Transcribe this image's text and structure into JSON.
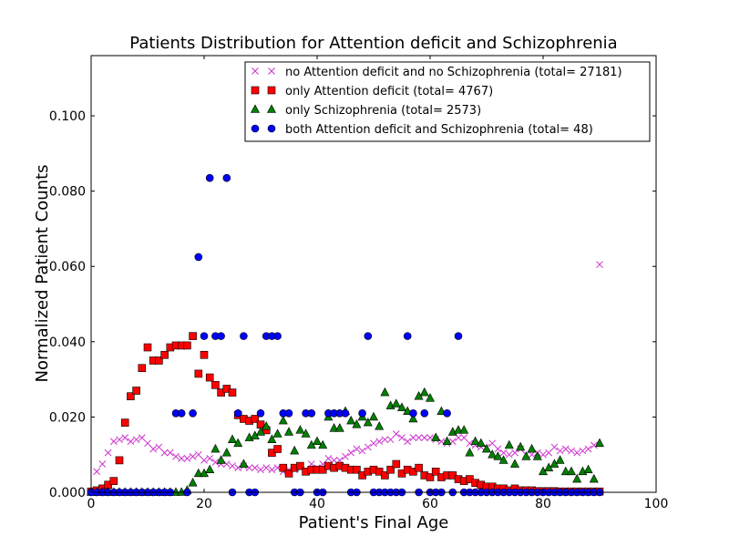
{
  "chart_data": {
    "type": "scatter",
    "title": "Patients Distribution for Attention deficit and Schizophrenia",
    "xlabel": "Patient's Final Age",
    "ylabel": "Normalized Patient Counts",
    "xlim": [
      0,
      100
    ],
    "ylim": [
      0,
      0.116
    ],
    "xticks": [
      "0",
      "20",
      "40",
      "60",
      "80",
      "100"
    ],
    "yticks": [
      "0.000",
      "0.020",
      "0.040",
      "0.060",
      "0.080",
      "0.100"
    ],
    "legend_position": "top-right",
    "grid": false,
    "series": [
      {
        "name": "no Attention deficit and no Schizophrenia (total= 27181)",
        "marker": "x",
        "color": "#cc33cc",
        "x": [
          1,
          2,
          3,
          4,
          5,
          6,
          7,
          8,
          9,
          10,
          11,
          12,
          13,
          14,
          15,
          16,
          17,
          18,
          19,
          20,
          21,
          22,
          23,
          24,
          25,
          26,
          27,
          28,
          29,
          30,
          31,
          32,
          33,
          34,
          35,
          36,
          37,
          38,
          39,
          40,
          41,
          42,
          43,
          44,
          45,
          46,
          47,
          48,
          49,
          50,
          51,
          52,
          53,
          54,
          55,
          56,
          57,
          58,
          59,
          60,
          61,
          62,
          63,
          64,
          65,
          66,
          67,
          68,
          69,
          70,
          71,
          72,
          73,
          74,
          75,
          76,
          77,
          78,
          79,
          80,
          81,
          82,
          83,
          84,
          85,
          86,
          87,
          88,
          89,
          90
        ],
        "y": [
          0.0055,
          0.0075,
          0.0105,
          0.0135,
          0.014,
          0.0145,
          0.0135,
          0.014,
          0.0145,
          0.013,
          0.0115,
          0.012,
          0.0105,
          0.0105,
          0.0095,
          0.009,
          0.009,
          0.0095,
          0.01,
          0.0085,
          0.009,
          0.008,
          0.0075,
          0.0075,
          0.007,
          0.0065,
          0.007,
          0.0065,
          0.0065,
          0.006,
          0.0065,
          0.006,
          0.0065,
          0.0055,
          0.006,
          0.006,
          0.007,
          0.006,
          0.0075,
          0.0065,
          0.0075,
          0.009,
          0.0085,
          0.0085,
          0.0095,
          0.0105,
          0.0115,
          0.011,
          0.012,
          0.013,
          0.0135,
          0.014,
          0.014,
          0.0155,
          0.0145,
          0.0135,
          0.0145,
          0.0145,
          0.0145,
          0.0145,
          0.014,
          0.0135,
          0.013,
          0.0135,
          0.0145,
          0.0145,
          0.013,
          0.0125,
          0.012,
          0.012,
          0.013,
          0.0115,
          0.0105,
          0.01,
          0.0105,
          0.0115,
          0.01,
          0.01,
          0.0105,
          0.01,
          0.0105,
          0.012,
          0.011,
          0.0115,
          0.011,
          0.0105,
          0.011,
          0.0115,
          0.0125,
          0.0605
        ]
      },
      {
        "name": "only Attention deficit (total= 4767)",
        "marker": "s",
        "color": "#ff0000",
        "x": [
          0,
          1,
          2,
          3,
          4,
          5,
          6,
          7,
          8,
          9,
          10,
          11,
          12,
          13,
          14,
          15,
          16,
          17,
          18,
          19,
          20,
          21,
          22,
          23,
          24,
          25,
          26,
          27,
          28,
          29,
          30,
          31,
          32,
          33,
          34,
          35,
          36,
          37,
          38,
          39,
          40,
          41,
          42,
          43,
          44,
          45,
          46,
          47,
          48,
          49,
          50,
          51,
          52,
          53,
          54,
          55,
          56,
          57,
          58,
          59,
          60,
          61,
          62,
          63,
          64,
          65,
          66,
          67,
          68,
          69,
          70,
          71,
          72,
          73,
          74,
          75,
          76,
          77,
          78,
          79,
          80,
          81,
          82,
          83,
          84,
          85,
          86,
          87,
          88,
          89,
          90
        ],
        "y": [
          0.0002,
          0.0005,
          0.001,
          0.002,
          0.003,
          0.0085,
          0.0185,
          0.0255,
          0.027,
          0.033,
          0.0385,
          0.035,
          0.035,
          0.0365,
          0.0385,
          0.039,
          0.039,
          0.039,
          0.0415,
          0.0315,
          0.0365,
          0.0305,
          0.0285,
          0.0265,
          0.0275,
          0.0265,
          0.0205,
          0.0195,
          0.019,
          0.0195,
          0.018,
          0.0165,
          0.0105,
          0.0115,
          0.0065,
          0.005,
          0.0065,
          0.007,
          0.0055,
          0.006,
          0.006,
          0.006,
          0.007,
          0.0065,
          0.007,
          0.0065,
          0.006,
          0.006,
          0.0045,
          0.0055,
          0.006,
          0.0055,
          0.0045,
          0.006,
          0.0075,
          0.005,
          0.006,
          0.0055,
          0.0065,
          0.0045,
          0.004,
          0.0055,
          0.004,
          0.0045,
          0.0045,
          0.0035,
          0.003,
          0.0035,
          0.0025,
          0.002,
          0.0015,
          0.0015,
          0.001,
          0.001,
          0.0005,
          0.001,
          0.0005,
          0.0005,
          0.0005,
          0.0003,
          0.0003,
          0.0003,
          0.0003,
          0.0002,
          0.0002,
          0.0002,
          0.0002,
          0.0002,
          0.0002,
          0.0002,
          0.0002
        ]
      },
      {
        "name": "only Schizophrenia (total= 2573)",
        "marker": "^",
        "color": "#008000",
        "x": [
          0,
          1,
          2,
          3,
          4,
          5,
          6,
          7,
          8,
          9,
          10,
          11,
          12,
          13,
          14,
          15,
          16,
          17,
          18,
          19,
          20,
          21,
          22,
          23,
          24,
          25,
          26,
          27,
          28,
          29,
          30,
          31,
          32,
          33,
          34,
          35,
          36,
          37,
          38,
          39,
          40,
          41,
          42,
          43,
          44,
          45,
          46,
          47,
          48,
          49,
          50,
          51,
          52,
          53,
          54,
          55,
          56,
          57,
          58,
          59,
          60,
          61,
          62,
          63,
          64,
          65,
          66,
          67,
          68,
          69,
          70,
          71,
          72,
          73,
          74,
          75,
          76,
          77,
          78,
          79,
          80,
          81,
          82,
          83,
          84,
          85,
          86,
          87,
          88,
          89,
          90
        ],
        "y": [
          0,
          0,
          0,
          0,
          0,
          0,
          0,
          0,
          0,
          0,
          0,
          0,
          0,
          0,
          0,
          0,
          0,
          0.0005,
          0.0025,
          0.005,
          0.005,
          0.006,
          0.0115,
          0.0085,
          0.0105,
          0.014,
          0.013,
          0.0075,
          0.0145,
          0.015,
          0.016,
          0.0175,
          0.014,
          0.0155,
          0.019,
          0.016,
          0.011,
          0.0165,
          0.0155,
          0.0125,
          0.0135,
          0.0125,
          0.02,
          0.017,
          0.017,
          0.0215,
          0.019,
          0.018,
          0.02,
          0.0185,
          0.02,
          0.0175,
          0.0265,
          0.023,
          0.0235,
          0.0225,
          0.0215,
          0.0195,
          0.0255,
          0.0265,
          0.025,
          0.0145,
          0.0215,
          0.0135,
          0.016,
          0.0165,
          0.0165,
          0.0105,
          0.0135,
          0.013,
          0.0115,
          0.01,
          0.0095,
          0.0085,
          0.0125,
          0.0075,
          0.012,
          0.0095,
          0.0115,
          0.0095,
          0.0055,
          0.0065,
          0.0075,
          0.0085,
          0.0055,
          0.0055,
          0.0035,
          0.0055,
          0.006,
          0.0035,
          0.013
        ]
      },
      {
        "name": "both Attention deficit and Schizophrenia (total= 48)",
        "marker": "o",
        "color": "#0000ff",
        "x": [
          0,
          1,
          2,
          3,
          4,
          5,
          6,
          7,
          8,
          9,
          10,
          11,
          12,
          13,
          14,
          15,
          16,
          17,
          18,
          19,
          20,
          21,
          22,
          23,
          24,
          25,
          26,
          27,
          28,
          29,
          30,
          31,
          32,
          33,
          34,
          35,
          36,
          37,
          38,
          39,
          40,
          41,
          42,
          43,
          44,
          45,
          46,
          47,
          48,
          49,
          50,
          51,
          52,
          53,
          54,
          55,
          56,
          57,
          58,
          59,
          60,
          61,
          62,
          63,
          64,
          65,
          66,
          67,
          68,
          69,
          70,
          71,
          72,
          73,
          74,
          75,
          76,
          77,
          78,
          79,
          80,
          81,
          82,
          83,
          84,
          85,
          86,
          87,
          88,
          89,
          90
        ],
        "y": [
          0,
          0,
          0,
          0,
          0,
          0,
          0,
          0,
          0,
          0,
          0,
          0,
          0,
          0,
          0,
          0.021,
          0.021,
          0,
          0.021,
          0.0625,
          0.0415,
          0.0835,
          0.0415,
          0.0415,
          0.0835,
          0,
          0.021,
          0.0415,
          0,
          0,
          0.021,
          0.0415,
          0.0415,
          0.0415,
          0.021,
          0.021,
          0,
          0,
          0.021,
          0.021,
          0,
          0,
          0.021,
          0.021,
          0.021,
          0.021,
          0,
          0,
          0.021,
          0.0415,
          0,
          0,
          0,
          0,
          0,
          0,
          0.0415,
          0.021,
          0,
          0.021,
          0,
          0,
          0,
          0.021,
          0,
          0.0415,
          0,
          0,
          0,
          0,
          0,
          0,
          0,
          0,
          0,
          0,
          0,
          0,
          0,
          0,
          0,
          0,
          0,
          0,
          0,
          0,
          0,
          0,
          0,
          0,
          0
        ]
      }
    ]
  }
}
